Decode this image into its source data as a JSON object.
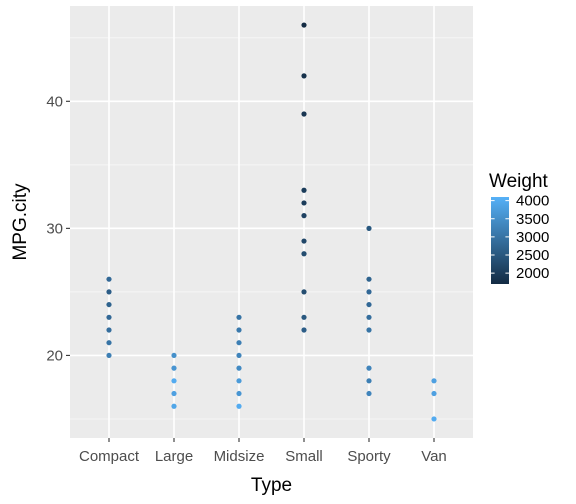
{
  "chart_data": {
    "type": "scatter",
    "x_type": "categorical",
    "categories": [
      "Compact",
      "Large",
      "Midsize",
      "Small",
      "Sporty",
      "Van"
    ],
    "xlabel": "Type",
    "ylabel": "MPG.city",
    "ylim": [
      13.5,
      47.5
    ],
    "yticks": [
      20,
      30,
      40
    ],
    "grid": true,
    "legend": {
      "title": "Weight",
      "placement": "right",
      "type": "colorbar",
      "range": [
        1700,
        4100
      ],
      "ticks": [
        2000,
        2500,
        3000,
        3500,
        4000
      ],
      "low_color": "#132B43",
      "high_color": "#56B1F7"
    },
    "series": [
      {
        "points": [
          {
            "x": "Compact",
            "y": 20,
            "weight": 3200
          },
          {
            "x": "Compact",
            "y": 21,
            "weight": 3000
          },
          {
            "x": "Compact",
            "y": 22,
            "weight": 2900
          },
          {
            "x": "Compact",
            "y": 23,
            "weight": 2800
          },
          {
            "x": "Compact",
            "y": 24,
            "weight": 2700
          },
          {
            "x": "Compact",
            "y": 25,
            "weight": 2600
          },
          {
            "x": "Compact",
            "y": 26,
            "weight": 2800
          },
          {
            "x": "Large",
            "y": 16,
            "weight": 3900
          },
          {
            "x": "Large",
            "y": 17,
            "weight": 3800
          },
          {
            "x": "Large",
            "y": 18,
            "weight": 4000
          },
          {
            "x": "Large",
            "y": 19,
            "weight": 3600
          },
          {
            "x": "Large",
            "y": 20,
            "weight": 3500
          },
          {
            "x": "Midsize",
            "y": 16,
            "weight": 4000
          },
          {
            "x": "Midsize",
            "y": 17,
            "weight": 3600
          },
          {
            "x": "Midsize",
            "y": 18,
            "weight": 3700
          },
          {
            "x": "Midsize",
            "y": 19,
            "weight": 3400
          },
          {
            "x": "Midsize",
            "y": 20,
            "weight": 3300
          },
          {
            "x": "Midsize",
            "y": 21,
            "weight": 3200
          },
          {
            "x": "Midsize",
            "y": 22,
            "weight": 3100
          },
          {
            "x": "Midsize",
            "y": 23,
            "weight": 3000
          },
          {
            "x": "Small",
            "y": 22,
            "weight": 2600
          },
          {
            "x": "Small",
            "y": 23,
            "weight": 2500
          },
          {
            "x": "Small",
            "y": 25,
            "weight": 2300
          },
          {
            "x": "Small",
            "y": 28,
            "weight": 2300
          },
          {
            "x": "Small",
            "y": 29,
            "weight": 2200
          },
          {
            "x": "Small",
            "y": 31,
            "weight": 2100
          },
          {
            "x": "Small",
            "y": 32,
            "weight": 2000
          },
          {
            "x": "Small",
            "y": 33,
            "weight": 2000
          },
          {
            "x": "Small",
            "y": 39,
            "weight": 1900
          },
          {
            "x": "Small",
            "y": 42,
            "weight": 1800
          },
          {
            "x": "Small",
            "y": 46,
            "weight": 1700
          },
          {
            "x": "Sporty",
            "y": 17,
            "weight": 3300
          },
          {
            "x": "Sporty",
            "y": 18,
            "weight": 3200
          },
          {
            "x": "Sporty",
            "y": 19,
            "weight": 3300
          },
          {
            "x": "Sporty",
            "y": 22,
            "weight": 3000
          },
          {
            "x": "Sporty",
            "y": 23,
            "weight": 2900
          },
          {
            "x": "Sporty",
            "y": 24,
            "weight": 2800
          },
          {
            "x": "Sporty",
            "y": 25,
            "weight": 2800
          },
          {
            "x": "Sporty",
            "y": 26,
            "weight": 2700
          },
          {
            "x": "Sporty",
            "y": 30,
            "weight": 2500
          },
          {
            "x": "Van",
            "y": 15,
            "weight": 4000
          },
          {
            "x": "Van",
            "y": 17,
            "weight": 3800
          },
          {
            "x": "Van",
            "y": 18,
            "weight": 3800
          }
        ]
      }
    ]
  }
}
